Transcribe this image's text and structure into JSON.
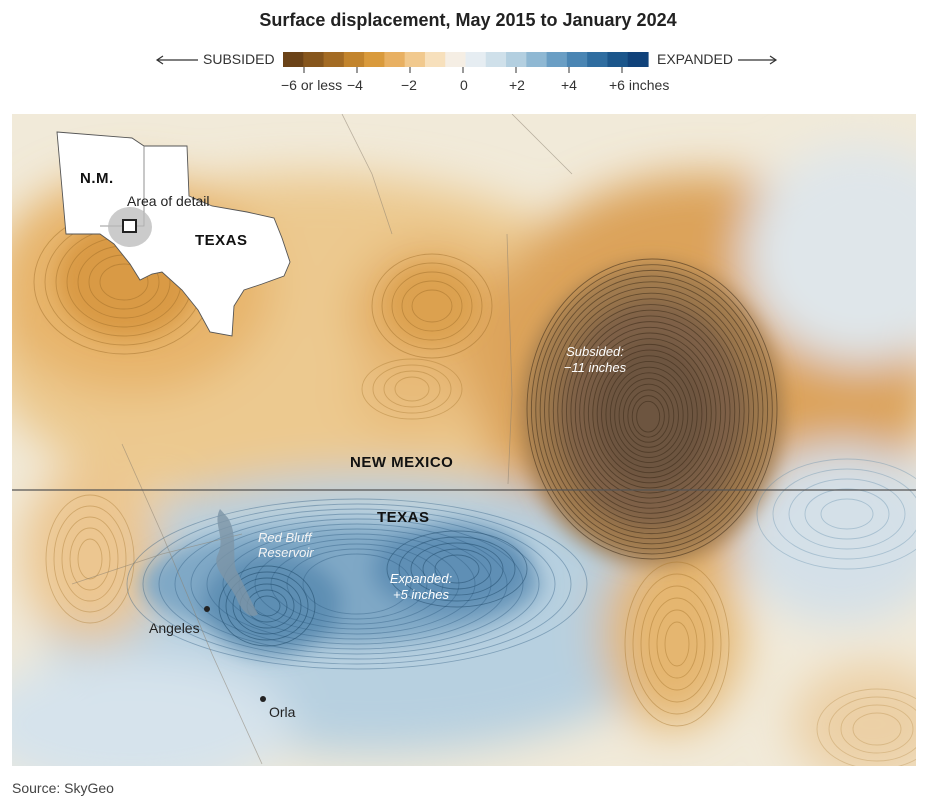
{
  "title": "Surface displacement, May 2015 to January 2024",
  "legend": {
    "left_label": "SUBSIDED",
    "right_label": "EXPANDED",
    "ticks": [
      "−6 or less",
      "−4",
      "−2",
      "0",
      "+2",
      "+4",
      "+6 inches"
    ],
    "colors": [
      "#6b4318",
      "#86561d",
      "#a36b24",
      "#c2842d",
      "#d99a3c",
      "#e8b062",
      "#f1c98e",
      "#f7e0bc",
      "#f5eee4",
      "#e6edf2",
      "#cfe0ea",
      "#b3cfe0",
      "#8fb8d3",
      "#6a9ec4",
      "#4a85b3",
      "#2f6da0",
      "#1b568b",
      "#10427a"
    ]
  },
  "inset": {
    "nm_label": "N.M.",
    "tx_label": "TEXAS",
    "detail_label": "Area of detail"
  },
  "map": {
    "nm_label": "NEW MEXICO",
    "tx_label": "TEXAS",
    "subsided_label": "Subsided:",
    "subsided_value": "−11 inches",
    "expanded_label": "Expanded:",
    "expanded_value": "+5 inches",
    "reservoir_line1": "Red Bluff",
    "reservoir_line2": "Reservoir",
    "town1": "Angeles",
    "town2": "Orla"
  },
  "source": "Source: SkyGeo"
}
